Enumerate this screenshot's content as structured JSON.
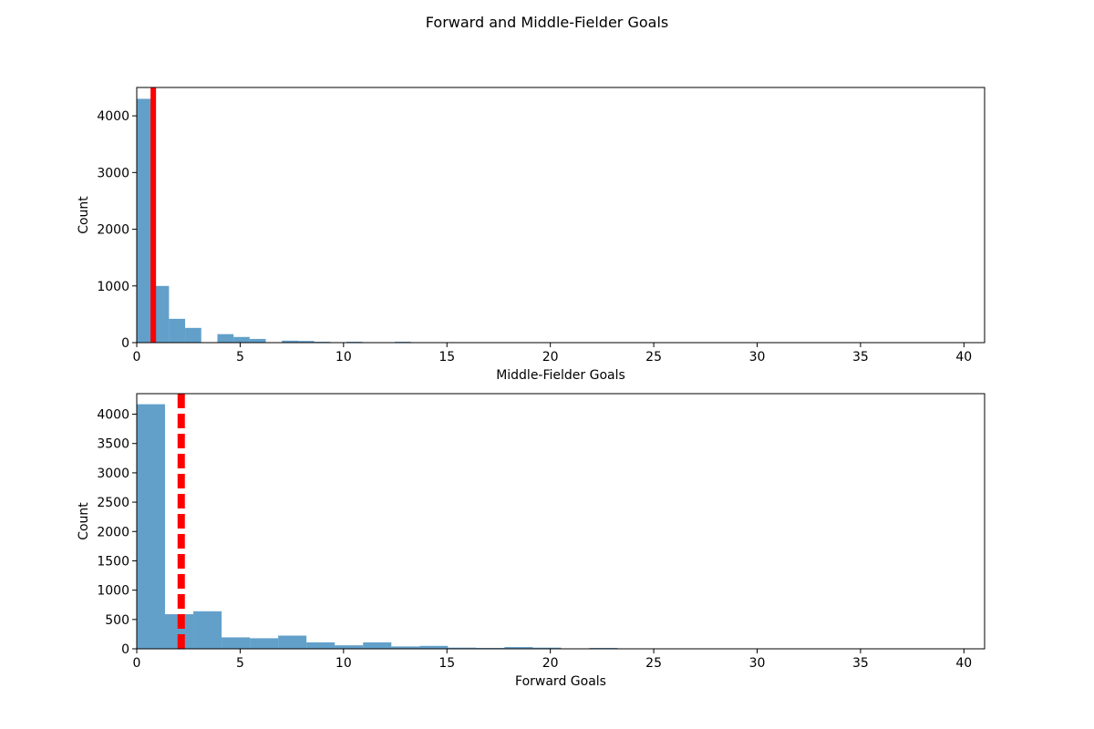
{
  "figure_title": "Forward and Middle-Fielder Goals",
  "colors": {
    "bar": "#1f77b4",
    "mean_line": "#ff0000",
    "axis": "#000000",
    "background": "#ffffff"
  },
  "chart_data": [
    {
      "type": "bar",
      "subtype": "histogram",
      "xlabel": "Middle-Fielder Goals",
      "ylabel": "Count",
      "xlim": [
        0,
        41
      ],
      "ylim": [
        0,
        4500
      ],
      "xticks": [
        0,
        5,
        10,
        15,
        20,
        25,
        30,
        35,
        40
      ],
      "yticks": [
        0,
        1000,
        2000,
        3000,
        4000
      ],
      "grid": false,
      "bin_width": 0.78,
      "bin_edges_start": 0,
      "counts": [
        4300,
        1000,
        420,
        260,
        0,
        150,
        100,
        65,
        0,
        35,
        30,
        15,
        0,
        15,
        0,
        0,
        15,
        0,
        0,
        0,
        0,
        0,
        0,
        0,
        0,
        0,
        0,
        0,
        0,
        0,
        0,
        0,
        0,
        0,
        0,
        0,
        0,
        0,
        0,
        0,
        0,
        0,
        0,
        0,
        0,
        0,
        0,
        0,
        0,
        0,
        0,
        0
      ],
      "mean_line": {
        "x": 0.8,
        "style": "solid",
        "color": "#ff0000"
      }
    },
    {
      "type": "bar",
      "subtype": "histogram",
      "xlabel": "Forward Goals",
      "ylabel": "Count",
      "xlim": [
        0,
        41
      ],
      "ylim": [
        0,
        4350
      ],
      "xticks": [
        0,
        5,
        10,
        15,
        20,
        25,
        30,
        35,
        40
      ],
      "yticks": [
        0,
        500,
        1000,
        1500,
        2000,
        2500,
        3000,
        3500,
        4000
      ],
      "grid": false,
      "bin_width": 1.368,
      "bin_edges_start": 0,
      "counts": [
        4170,
        590,
        640,
        195,
        180,
        225,
        110,
        60,
        110,
        40,
        50,
        20,
        15,
        30,
        20,
        0,
        15,
        0,
        0,
        0,
        0,
        0,
        0,
        0,
        0,
        0,
        0,
        0,
        0,
        0
      ],
      "mean_line": {
        "x": 2.15,
        "style": "dashed",
        "color": "#ff0000"
      }
    }
  ]
}
